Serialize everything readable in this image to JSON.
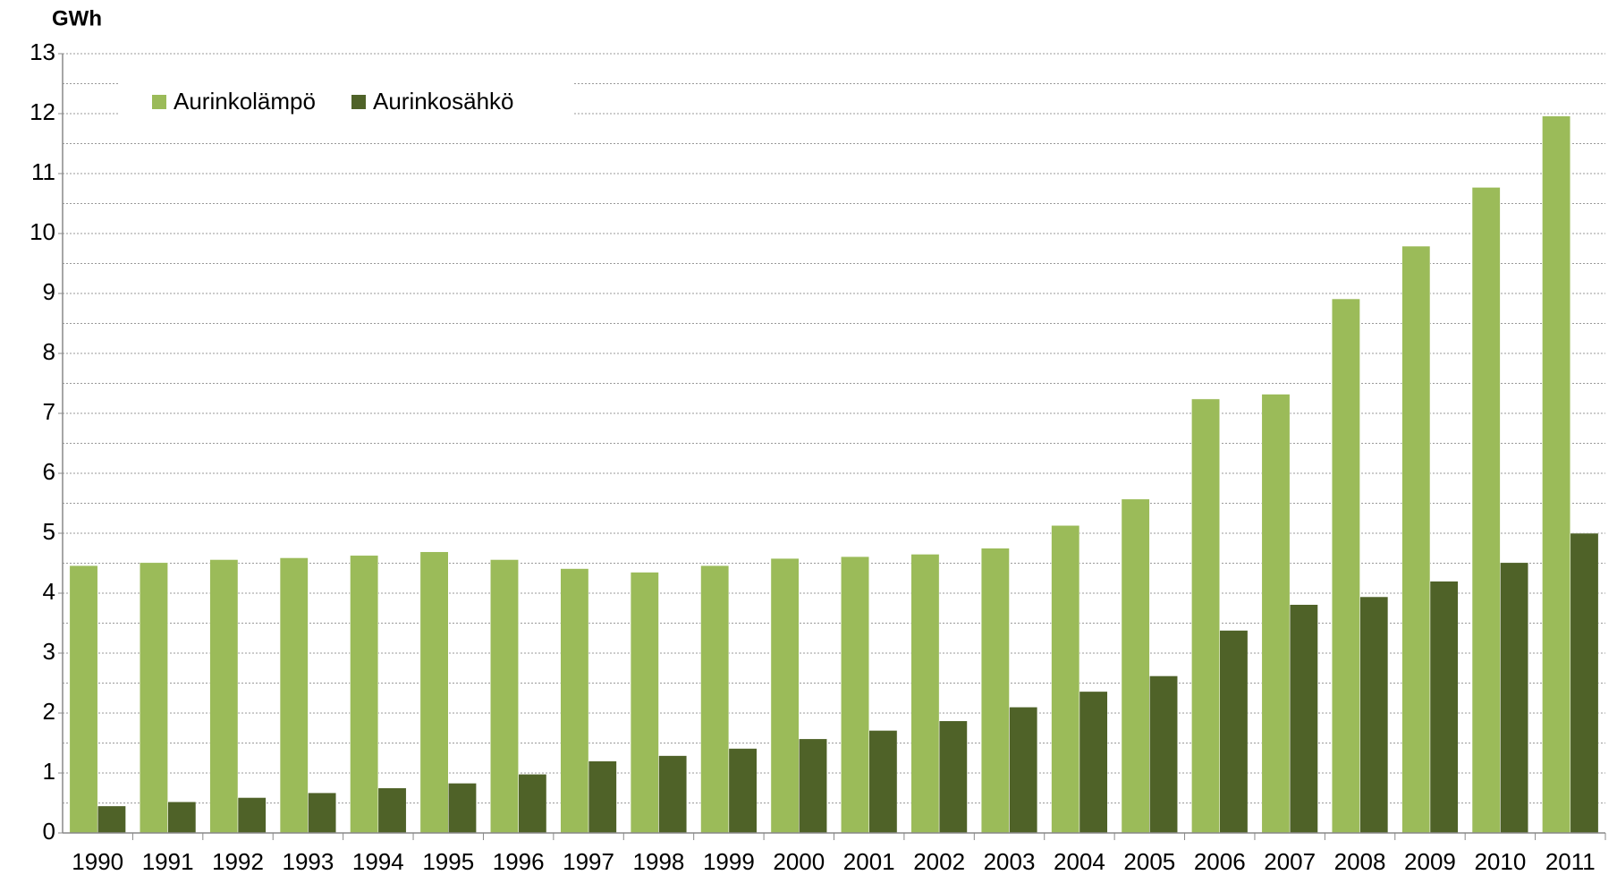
{
  "chart_data": {
    "type": "bar",
    "y_label": "GWh",
    "categories": [
      "1990",
      "1991",
      "1992",
      "1993",
      "1994",
      "1995",
      "1996",
      "1997",
      "1998",
      "1999",
      "2000",
      "2001",
      "2002",
      "2003",
      "2004",
      "2005",
      "2006",
      "2007",
      "2008",
      "2009",
      "2010",
      "2011"
    ],
    "series": [
      {
        "name": "Aurinkolämpö",
        "color": "#9bbb59",
        "values": [
          4.46,
          4.51,
          4.56,
          4.59,
          4.63,
          4.69,
          4.56,
          4.41,
          4.35,
          4.46,
          4.58,
          4.61,
          4.65,
          4.75,
          5.13,
          5.57,
          7.24,
          7.32,
          8.91,
          9.79,
          10.77,
          11.96
        ]
      },
      {
        "name": "Aurinkosähkö",
        "color": "#4f6228",
        "values": [
          0.45,
          0.52,
          0.59,
          0.67,
          0.75,
          0.83,
          0.98,
          1.2,
          1.29,
          1.41,
          1.57,
          1.71,
          1.87,
          2.1,
          2.36,
          2.62,
          3.38,
          3.81,
          3.94,
          4.2,
          4.51,
          5.0
        ]
      }
    ],
    "ylim": [
      0,
      13
    ],
    "yticks": [
      0,
      1,
      2,
      3,
      4,
      5,
      6,
      7,
      8,
      9,
      10,
      11,
      12,
      13
    ],
    "grid": true,
    "legend": "top-left"
  }
}
